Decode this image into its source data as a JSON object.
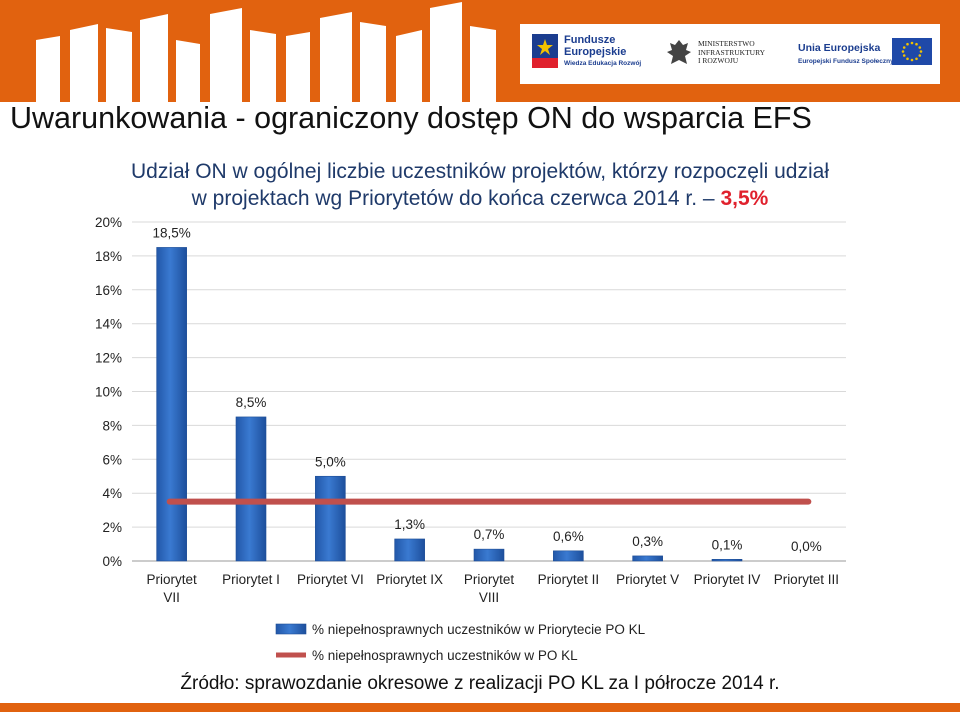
{
  "slide": {
    "title": "Uwarunkowania - ograniczony dostęp ON do wsparcia EFS",
    "subtitle_line1": "Udział ON w ogólnej liczbie uczestników projektów, którzy rozpoczęli udział",
    "subtitle_line2": "w projektach wg Priorytetów do końca czerwca 2014 r. –",
    "subtitle_value": "3,5%",
    "source": "Źródło: sprawozdanie okresowe z realizacji PO KL za I półrocze 2014 r."
  },
  "logos": {
    "fe_line1": "Fundusze",
    "fe_line2": "Europejskie",
    "fe_sub": "Wiedza Edukacja Rozwój",
    "min_line1": "MINISTERSTWO",
    "min_line2": "INFRASTRUKTURY",
    "min_line3": "I ROZWOJU",
    "ue_line1": "Unia Europejska",
    "ue_line2": "Europejski Fundusz Społeczny"
  },
  "colors": {
    "brand_orange": "#e1620f",
    "bar_blue": "#3a7ad1",
    "line_red": "#c0504d",
    "subtitle_blue": "#1f3a6a",
    "highlight_red": "#e0212d"
  },
  "chart_data": {
    "type": "bar",
    "categories": [
      "Priorytet VII",
      "Priorytet I",
      "Priorytet VI",
      "Priorytet IX",
      "Priorytet VIII",
      "Priorytet II",
      "Priorytet V",
      "Priorytet IV",
      "Priorytet III"
    ],
    "category_lines": [
      [
        "Priorytet",
        "VII"
      ],
      [
        "Priorytet I"
      ],
      [
        "Priorytet VI"
      ],
      [
        "Priorytet IX"
      ],
      [
        "Priorytet",
        "VIII"
      ],
      [
        "Priorytet II"
      ],
      [
        "Priorytet V"
      ],
      [
        "Priorytet IV"
      ],
      [
        "Priorytet III"
      ]
    ],
    "series": [
      {
        "name": "% niepełnosprawnych uczestników w Priorytecie PO KL",
        "type": "bar",
        "color": "#3a7ad1",
        "values": [
          18.5,
          8.5,
          5.0,
          1.3,
          0.7,
          0.6,
          0.3,
          0.1,
          0.0
        ],
        "labels": [
          "18,5%",
          "8,5%",
          "5,0%",
          "1,3%",
          "0,7%",
          "0,6%",
          "0,3%",
          "0,1%",
          "0,0%"
        ]
      },
      {
        "name": "% niepełnosprawnych uczestników w PO KL",
        "type": "line",
        "color": "#c0504d",
        "value": 3.5
      }
    ],
    "ylim": [
      0,
      20
    ],
    "yticks": [
      0,
      2,
      4,
      6,
      8,
      10,
      12,
      14,
      16,
      18,
      20
    ],
    "ytick_labels": [
      "0%",
      "2%",
      "4%",
      "6%",
      "8%",
      "10%",
      "12%",
      "14%",
      "16%",
      "18%",
      "20%"
    ],
    "grid": true,
    "legend_position": "bottom"
  }
}
